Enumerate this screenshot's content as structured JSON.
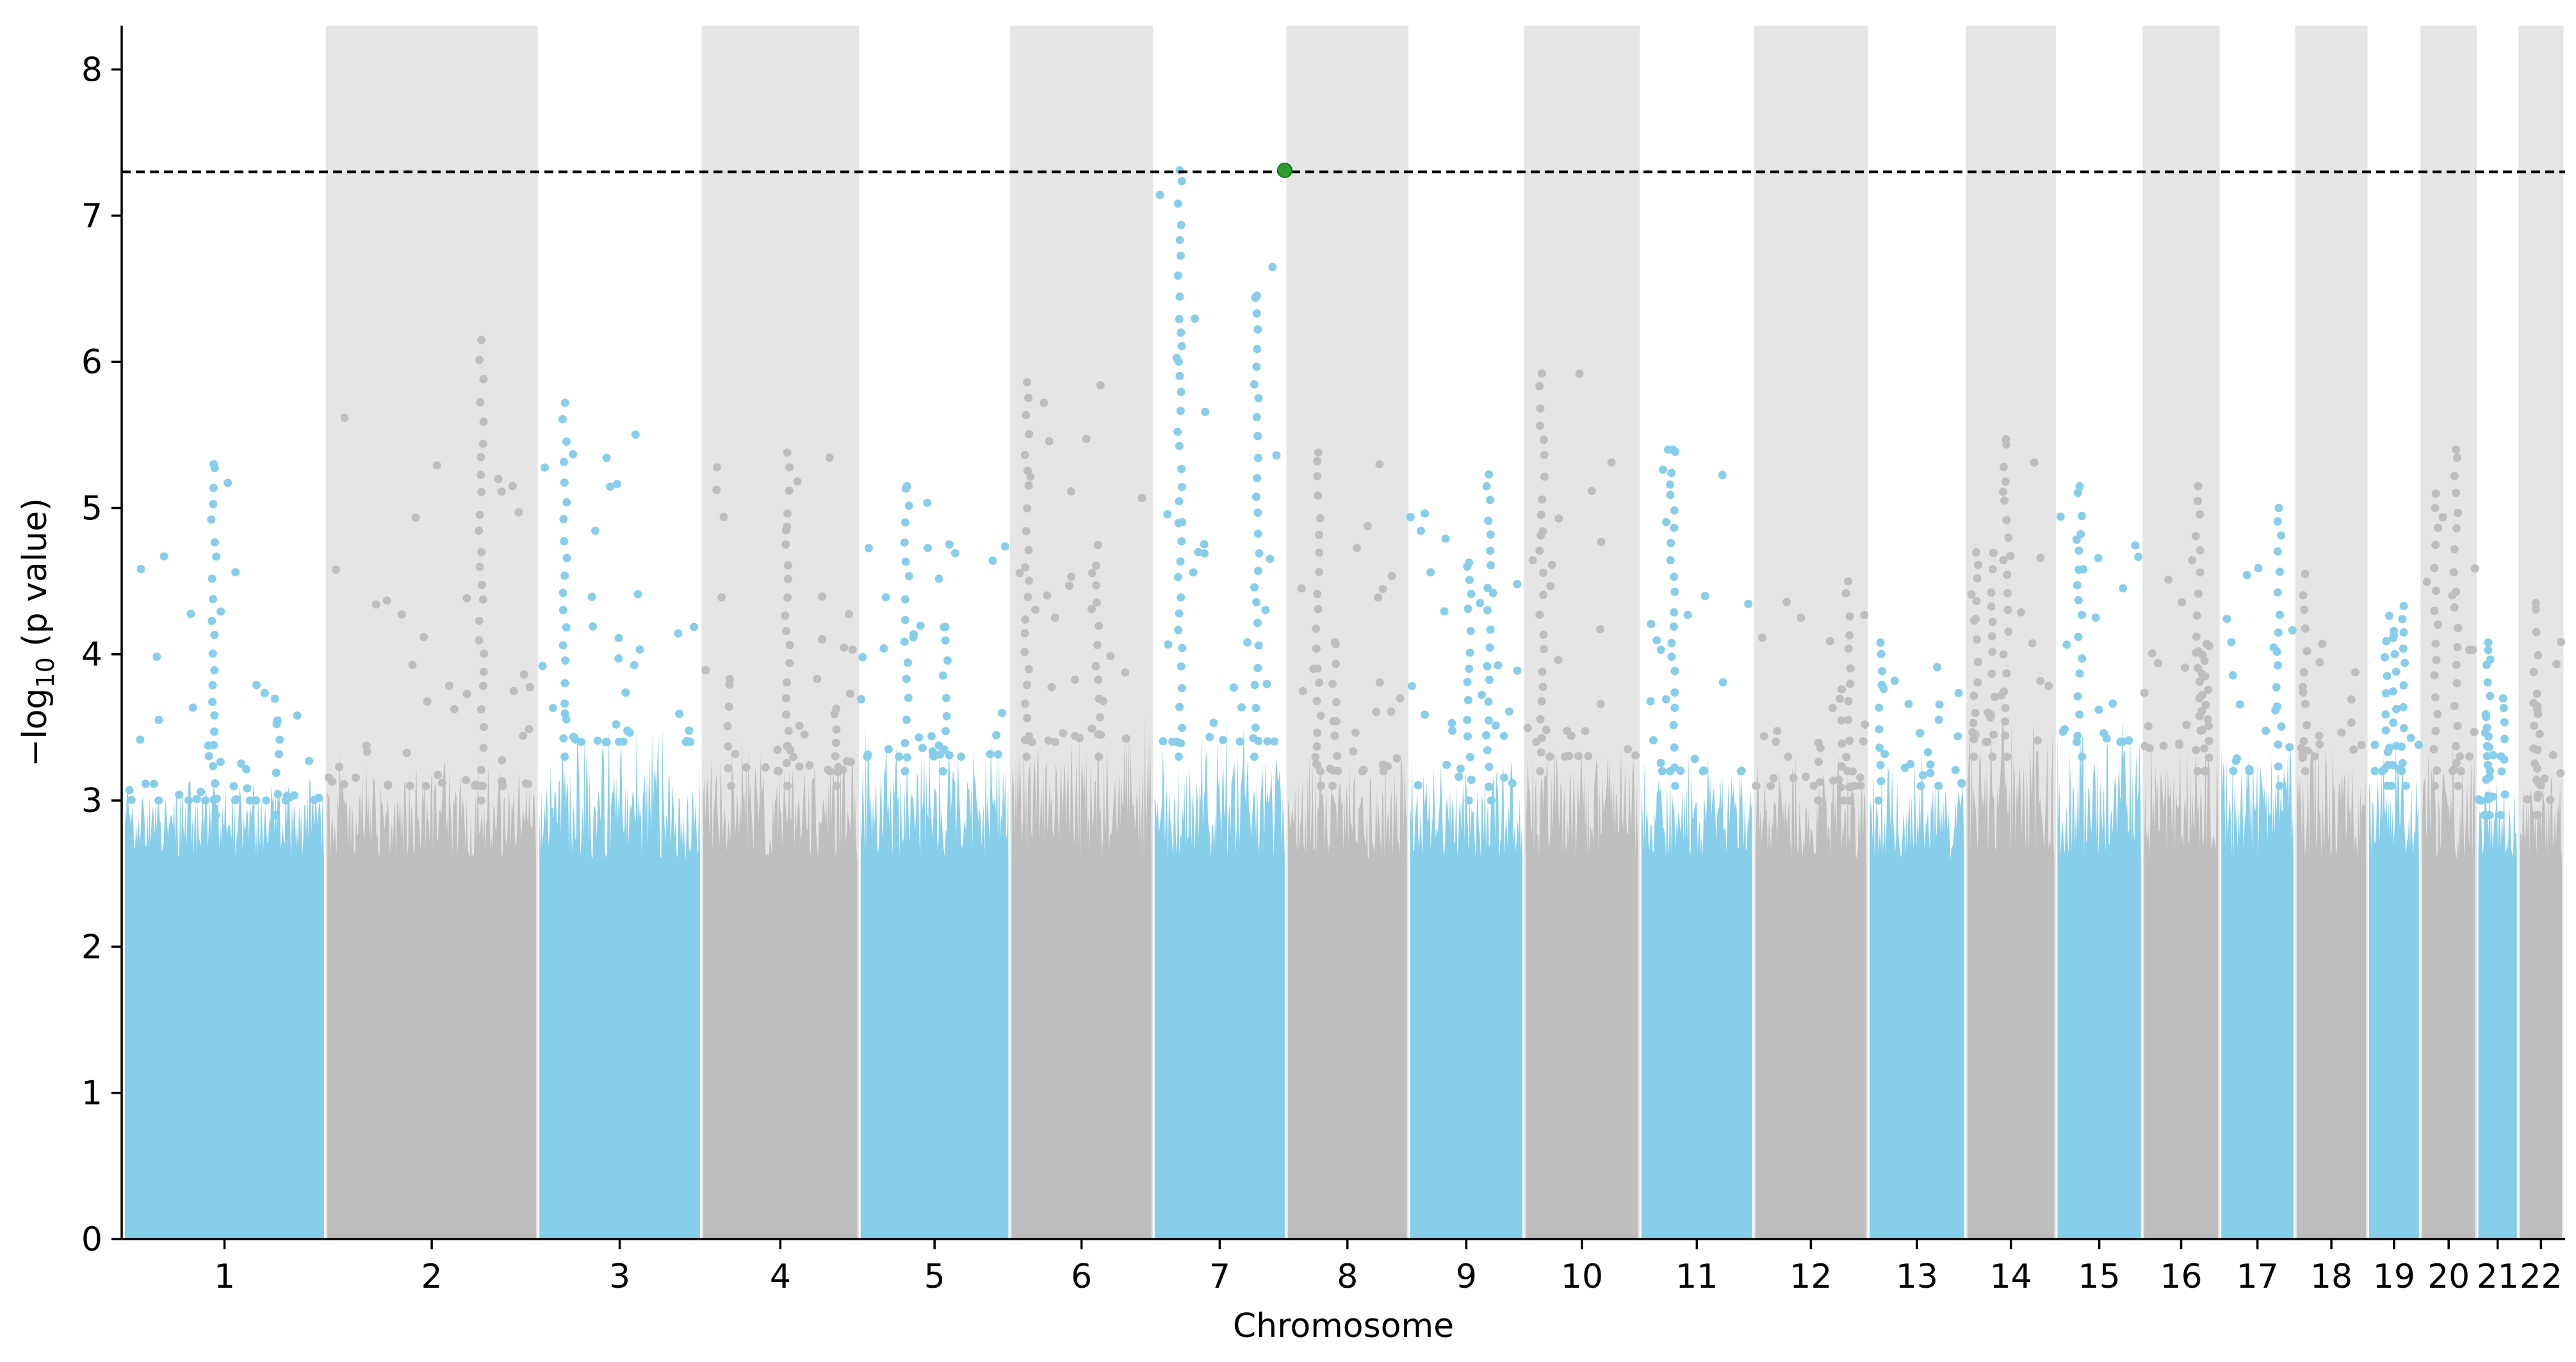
{
  "chart_data": {
    "type": "scatter",
    "subtype": "manhattan",
    "title": "",
    "xlabel": "Chromosome",
    "ylabel_prefix": "−log",
    "ylabel_subscript": "10",
    "ylabel_suffix": " (p value)",
    "ylim": [
      0,
      8.3
    ],
    "yticks": [
      0,
      1,
      2,
      3,
      4,
      5,
      6,
      7,
      8
    ],
    "significance_threshold": 7.3,
    "colors": {
      "odd_chromosome": "#87ceeb",
      "even_chromosome": "#bebebe",
      "even_band": "#e5e5e5",
      "significant_point": "#2ca02c",
      "threshold_line": "#000000"
    },
    "chromosomes": [
      {
        "label": "1",
        "start": 0,
        "end": 248,
        "base": 3.2,
        "max": 5.3
      },
      {
        "label": "2",
        "start": 252,
        "end": 512,
        "base": 3.3,
        "max": 6.15
      },
      {
        "label": "3",
        "start": 516,
        "end": 716,
        "base": 3.6,
        "max": 5.72
      },
      {
        "label": "4",
        "start": 720,
        "end": 912,
        "base": 3.4,
        "max": 5.38
      },
      {
        "label": "5",
        "start": 916,
        "end": 1100,
        "base": 3.5,
        "max": 5.15
      },
      {
        "label": "6",
        "start": 1104,
        "end": 1278,
        "base": 3.6,
        "max": 5.86
      },
      {
        "label": "7",
        "start": 1282,
        "end": 1444,
        "base": 3.6,
        "max": 7.31
      },
      {
        "label": "8",
        "start": 1448,
        "end": 1596,
        "base": 3.4,
        "max": 5.38
      },
      {
        "label": "9",
        "start": 1600,
        "end": 1740,
        "base": 3.3,
        "max": 5.23
      },
      {
        "label": "10",
        "start": 1744,
        "end": 1884,
        "base": 3.5,
        "max": 5.92
      },
      {
        "label": "11",
        "start": 1888,
        "end": 2026,
        "base": 3.4,
        "max": 5.4
      },
      {
        "label": "12",
        "start": 2030,
        "end": 2168,
        "base": 3.3,
        "max": 4.5
      },
      {
        "label": "13",
        "start": 2172,
        "end": 2290,
        "base": 3.3,
        "max": 4.08
      },
      {
        "label": "14",
        "start": 2294,
        "end": 2402,
        "base": 3.6,
        "max": 5.47
      },
      {
        "label": "15",
        "start": 2406,
        "end": 2510,
        "base": 3.6,
        "max": 5.15
      },
      {
        "label": "16",
        "start": 2514,
        "end": 2606,
        "base": 3.5,
        "max": 5.15
      },
      {
        "label": "17",
        "start": 2610,
        "end": 2700,
        "base": 3.4,
        "max": 5.0
      },
      {
        "label": "18",
        "start": 2704,
        "end": 2790,
        "base": 3.5,
        "max": 4.55
      },
      {
        "label": "19",
        "start": 2794,
        "end": 2856,
        "base": 3.4,
        "max": 4.33
      },
      {
        "label": "20",
        "start": 2860,
        "end": 2926,
        "base": 3.4,
        "max": 5.4
      },
      {
        "label": "21",
        "start": 2930,
        "end": 2978,
        "base": 3.2,
        "max": 4.08
      },
      {
        "label": "22",
        "start": 2982,
        "end": 3034,
        "base": 3.2,
        "max": 4.35
      }
    ],
    "top_hit": {
      "chromosome": "7",
      "pos": 1444,
      "value": 7.31
    }
  }
}
